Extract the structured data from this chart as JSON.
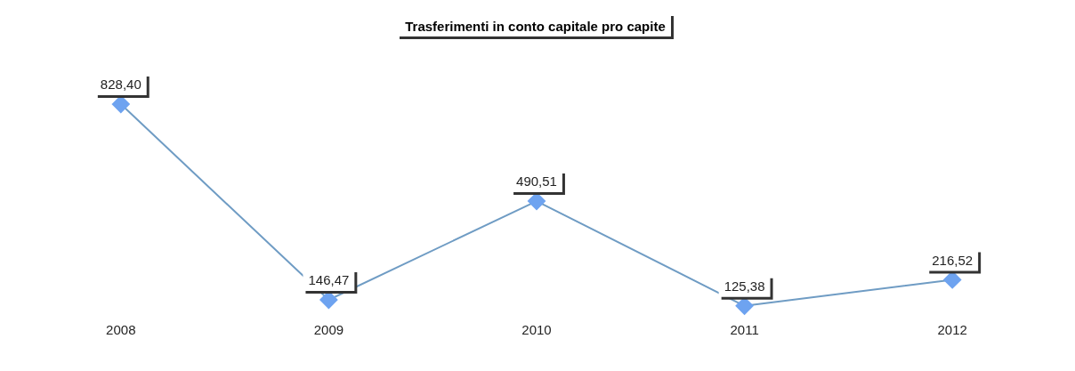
{
  "chart_data": {
    "type": "line",
    "title": "Trasferimenti in conto capitale pro capite",
    "categories": [
      "2008",
      "2009",
      "2010",
      "2011",
      "2012"
    ],
    "series": [
      {
        "color": "#6ea3f0",
        "values": [
          828.4,
          146.47,
          490.51,
          125.38,
          216.52
        ],
        "value_labels": [
          "828,40",
          "146,47",
          "490,51",
          "125,38",
          "216,52"
        ]
      }
    ],
    "marker": "diamond",
    "grid": false,
    "legend": false
  }
}
